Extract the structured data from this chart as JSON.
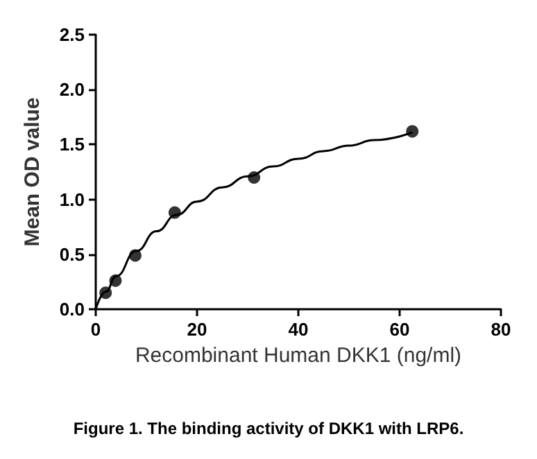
{
  "chart_data": {
    "type": "scatter",
    "xlabel": "Recombinant Human DKK1 (ng/ml)",
    "ylabel": "Mean OD value",
    "annotations": [
      "Figure 1. The binding activity of DKK1 with LRP6."
    ],
    "series": [
      {
        "color": "#000000",
        "marker": "circle",
        "x": [
          1.95,
          3.9,
          7.8,
          15.6,
          31.25,
          62.5
        ],
        "values": [
          0.15,
          0.26,
          0.49,
          0.88,
          1.2,
          1.62
        ]
      },
      {
        "type": "line",
        "color": "#000000",
        "marker": "none",
        "x": [
          0,
          2,
          4,
          8,
          12,
          16,
          20,
          25,
          30,
          35,
          40,
          45,
          50,
          55,
          62.5
        ],
        "values": [
          0,
          0.16,
          0.3,
          0.53,
          0.71,
          0.86,
          0.98,
          1.11,
          1.21,
          1.3,
          1.37,
          1.44,
          1.49,
          1.54,
          1.61
        ]
      }
    ],
    "xlim": [
      0,
      80
    ],
    "xticks": [
      0,
      20,
      40,
      60,
      80
    ],
    "ylim": [
      0,
      2.5
    ],
    "yticks": [
      {
        "value": 0,
        "label": "0.0"
      },
      {
        "value": 0.5,
        "label": "0.5"
      },
      {
        "value": 1,
        "label": "1.0"
      },
      {
        "value": 1.5,
        "label": "1.5"
      },
      {
        "value": 2,
        "label": "2.0"
      },
      {
        "value": 2.5,
        "label": "2.5"
      }
    ],
    "grid": false
  }
}
